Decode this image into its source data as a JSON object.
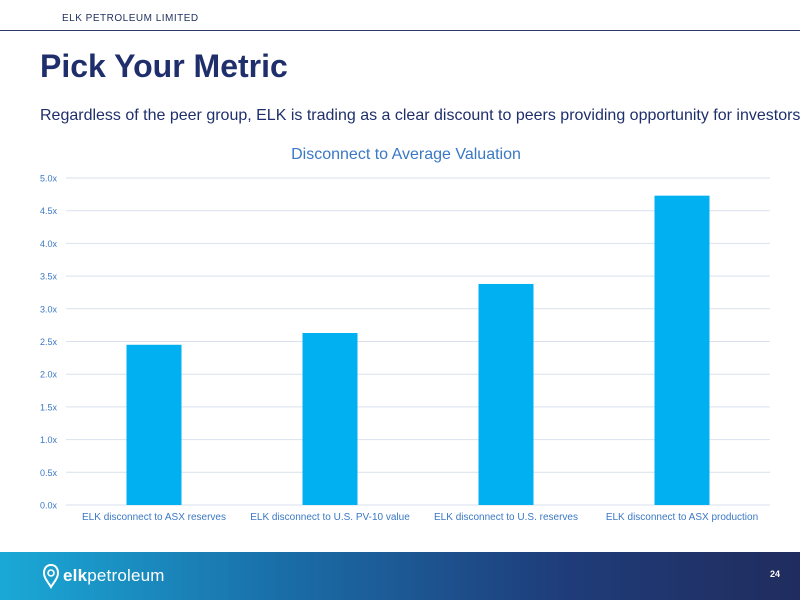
{
  "header": {
    "company": "ELK PETROLEUM LIMITED"
  },
  "title": "Pick Your Metric",
  "subtitle": "Regardless of the peer group, ELK is trading as a clear discount to peers providing opportunity for investors",
  "chart_data": {
    "type": "bar",
    "title": "Disconnect to Average Valuation",
    "categories": [
      "ELK disconnect to ASX reserves",
      "ELK disconnect to U.S. PV-10 value",
      "ELK disconnect to U.S. reserves",
      "ELK disconnect to ASX production"
    ],
    "values": [
      2.45,
      2.63,
      3.38,
      4.73
    ],
    "xlabel": "",
    "ylabel": "",
    "ylim": [
      0,
      5
    ],
    "yticks": [
      "0.0x",
      "0.5x",
      "1.0x",
      "1.5x",
      "2.0x",
      "2.5x",
      "3.0x",
      "3.5x",
      "4.0x",
      "4.5x",
      "5.0x"
    ],
    "grid": true,
    "legend": "none",
    "bar_color": "#00b0f0"
  },
  "footer": {
    "brand_bold": "elk",
    "brand_light": "petroleum",
    "page_number": "24"
  },
  "colors": {
    "title": "#1f2f6b",
    "chart_title": "#3a78c4",
    "axis_text": "#3a78c4",
    "grid": "#d9e1ee"
  }
}
